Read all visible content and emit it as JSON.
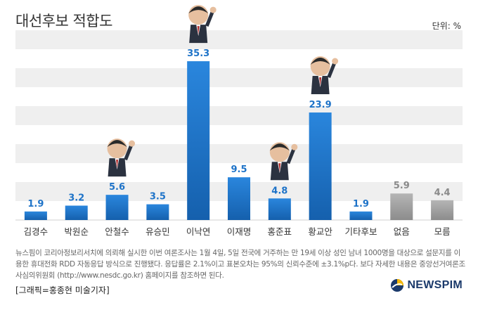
{
  "header": {
    "title": "대선후보 적합도",
    "unit": "단위: %"
  },
  "chart_data": {
    "type": "bar",
    "title": "대선후보 적합도",
    "ylabel": "",
    "unit": "%",
    "ylim": [
      0,
      40
    ],
    "grid": true,
    "categories": [
      "김경수",
      "박원순",
      "안철수",
      "유승민",
      "이낙연",
      "이재명",
      "홍준표",
      "황교안",
      "기타후보",
      "없음",
      "모름"
    ],
    "values": [
      1.9,
      3.2,
      5.6,
      3.5,
      35.3,
      9.5,
      4.8,
      23.9,
      1.9,
      5.9,
      4.4
    ],
    "value_labels": [
      "1.9",
      "3.2",
      "5.6",
      "3.5",
      "35.3",
      "9.5",
      "4.8",
      "23.9",
      "1.9",
      "5.9",
      "4.4"
    ],
    "colors": {
      "candidate": "#1e73c8",
      "other": "#9a9a9a",
      "grid": "#efefef",
      "label_blue": "#1e73c8",
      "label_gray": "#8a8a8a"
    },
    "bar_groups": [
      "candidate",
      "candidate",
      "candidate",
      "candidate",
      "candidate",
      "candidate",
      "candidate",
      "candidate",
      "candidate",
      "other",
      "other"
    ],
    "photos": [
      {
        "category": "안철수",
        "icon": "candidate-photo-icon"
      },
      {
        "category": "이낙연",
        "icon": "candidate-photo-icon"
      },
      {
        "category": "홍준표",
        "icon": "candidate-photo-icon"
      },
      {
        "category": "황교안",
        "icon": "candidate-photo-icon"
      }
    ]
  },
  "footer": {
    "note": "뉴스핌이 코리아정보리서치에 의뢰해 실시한 이번 여론조사는 1월 4일, 5일 전국에 거주하는 만 19세 이상 성인 남녀 1000명을 대상으로 설문지를 이용한 휴대전화 RDD 자동응답 방식으로 진행됐다. 응답률은 2.1%이고 표본오차는 95%의 신뢰수준에 ±3.1%p다. 보다 자세한 내용은 중앙선거여론조사심의위원회 (http://www.nesdc.go.kr) 홈페이지를 참조하면 된다.",
    "credit": "[그래픽=홍종현 미술기자]",
    "brand": "NEWSPIM"
  }
}
